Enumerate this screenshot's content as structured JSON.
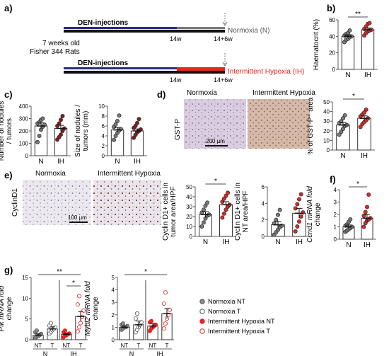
{
  "panels": {
    "a": {
      "label": "a)",
      "cohort": [
        "7 weeks old",
        "Fisher 344 Rats"
      ],
      "arm1": {
        "treatment": "DEN-injections",
        "t1": "14w",
        "t2": "14+6w",
        "condition": "Normoxia (N)"
      },
      "arm2": {
        "treatment": "DEN-injections",
        "t1": "14w",
        "t2": "14+6w",
        "condition": "Intermittent Hypoxia (IH)"
      },
      "colors": {
        "den": "#2c2c80",
        "normoxia": "#7a7a7a",
        "ih": "#e8251f",
        "black": "#111111"
      }
    },
    "b": {
      "label": "b)"
    },
    "c": {
      "label": "c)"
    },
    "d": {
      "label": "d)",
      "img_left": "Normoxia",
      "img_right": "Intermittent Hypoxia",
      "stain": "GST-P",
      "scalebar": "200 µm"
    },
    "e": {
      "label": "e)",
      "img_left": "Normoxia",
      "img_right": "Intermittent Hypoxia",
      "stain": "CyclinD1",
      "scalebar": "100 µm"
    },
    "f": {
      "label": "f)"
    },
    "g": {
      "label": "g)"
    }
  },
  "legend": {
    "items": [
      {
        "label": "Normoxia NT",
        "fill": "#8a8a8a",
        "stroke": "#555555"
      },
      {
        "label": "Normoxia T",
        "fill": "#ffffff",
        "stroke": "#555555"
      },
      {
        "label": "Intermittent Hypoxia NT",
        "fill": "#e8251f",
        "stroke": "#e8251f"
      },
      {
        "label": "Intermittent Hypoxia T",
        "fill": "#ffffff",
        "stroke": "#e8251f"
      }
    ]
  },
  "chart_data": [
    {
      "id": "b",
      "type": "bar",
      "categories": [
        "N",
        "IH"
      ],
      "values": [
        40,
        48
      ],
      "errors": [
        2,
        2
      ],
      "ylabel": "Haematocrit (%)",
      "yticks": [
        0,
        20,
        40,
        60
      ],
      "ylim": [
        0,
        60
      ],
      "significance": "**",
      "points": [
        [
          33,
          36,
          37,
          39,
          40,
          41,
          43,
          44,
          47
        ],
        [
          41,
          44,
          46,
          47,
          48,
          49,
          52,
          55,
          56
        ]
      ],
      "colors": [
        "#7a7a7a",
        "#e8251f"
      ]
    },
    {
      "id": "c1",
      "type": "bar",
      "categories": [
        "N",
        "IH"
      ],
      "values": [
        240,
        220
      ],
      "errors": [
        25,
        25
      ],
      "ylabel": "Number of nodules / tumors",
      "yticks": [
        0,
        100,
        200,
        300,
        400
      ],
      "ylim": [
        0,
        400
      ],
      "points": [
        [
          110,
          160,
          210,
          235,
          250,
          260,
          270,
          290,
          300
        ],
        [
          130,
          150,
          170,
          200,
          220,
          240,
          260,
          290,
          320
        ]
      ],
      "colors": [
        "#7a7a7a",
        "#8b1a1a"
      ]
    },
    {
      "id": "c2",
      "type": "bar",
      "categories": [
        "N",
        "IH"
      ],
      "values": [
        5.2,
        5.0
      ],
      "errors": [
        0.5,
        0.4
      ],
      "ylabel": "Size of nodules / tumors (mm)",
      "yticks": [
        0,
        2,
        4,
        6,
        8,
        10
      ],
      "ylim": [
        0,
        10
      ],
      "points": [
        [
          3.2,
          4.0,
          4.6,
          5.1,
          5.4,
          5.8,
          6.3,
          7.0,
          8.1
        ],
        [
          3.6,
          4.2,
          4.7,
          5.0,
          5.3,
          5.6,
          6.0,
          6.6,
          7.4
        ]
      ],
      "colors": [
        "#7a7a7a",
        "#8b1a1a"
      ]
    },
    {
      "id": "d",
      "type": "bar",
      "categories": [
        "N",
        "IH"
      ],
      "values": [
        26,
        33
      ],
      "errors": [
        2.5,
        2.5
      ],
      "ylabel": "% of GST-P⁺ area",
      "yticks": [
        0,
        10,
        20,
        30,
        40,
        50
      ],
      "ylim": [
        0,
        50
      ],
      "significance": "*",
      "points": [
        [
          16,
          19,
          22,
          25,
          26,
          28,
          30,
          33,
          36
        ],
        [
          24,
          27,
          29,
          31,
          33,
          35,
          37,
          39,
          42
        ]
      ],
      "colors": [
        "#7a7a7a",
        "#e8251f"
      ]
    },
    {
      "id": "e1",
      "type": "bar",
      "categories": [
        "N",
        "IH"
      ],
      "values": [
        22,
        32
      ],
      "errors": [
        3,
        3
      ],
      "ylabel": "Cyclin D1+ cells in tumor area/HPF",
      "yticks": [
        0,
        10,
        20,
        30,
        40,
        50
      ],
      "ylim": [
        0,
        50
      ],
      "significance": "*",
      "points": [
        [
          10,
          14,
          18,
          21,
          22,
          24,
          27,
          31,
          34
        ],
        [
          19,
          23,
          27,
          30,
          32,
          35,
          38,
          41,
          44
        ]
      ],
      "colors": [
        "#7a7a7a",
        "#e8251f"
      ]
    },
    {
      "id": "e2",
      "type": "bar",
      "categories": [
        "N",
        "IH"
      ],
      "values": [
        1.4,
        2.8
      ],
      "errors": [
        0.4,
        0.6
      ],
      "ylabel": "Cyclin D1+ cells in NT area/HPF",
      "yticks": [
        0,
        2,
        4,
        6
      ],
      "ylim": [
        0,
        6
      ],
      "points": [
        [
          0.2,
          0.5,
          0.8,
          1.1,
          1.3,
          1.6,
          2.0,
          2.6,
          3.2
        ],
        [
          0.6,
          1.2,
          1.8,
          2.4,
          2.9,
          3.4,
          3.9,
          4.5,
          5.1
        ]
      ],
      "colors": [
        "#7a7a7a",
        "#e8251f"
      ]
    },
    {
      "id": "f",
      "type": "bar",
      "categories": [
        "N",
        "IH"
      ],
      "values": [
        1.0,
        1.7
      ],
      "errors": [
        0.15,
        0.3
      ],
      "ylabel": "Ccnd1 mRNA fold change",
      "yticks": [
        0,
        1,
        2,
        3,
        4
      ],
      "ylim": [
        0,
        4
      ],
      "significance": "*",
      "points": [
        [
          0.6,
          0.7,
          0.8,
          0.9,
          1.0,
          1.1,
          1.2,
          1.4,
          1.6
        ],
        [
          1.0,
          1.3,
          1.5,
          1.6,
          1.7,
          1.9,
          2.2,
          2.6,
          3.6
        ]
      ],
      "colors": [
        "#7a7a7a",
        "#e8251f"
      ]
    },
    {
      "id": "g1",
      "type": "bar",
      "categories": [
        "NT",
        "T",
        "NT",
        "T"
      ],
      "groups": [
        "N",
        "IH"
      ],
      "values": [
        1.1,
        2.6,
        1.3,
        5.6
      ],
      "errors": [
        0.3,
        0.5,
        0.3,
        1.2
      ],
      "ylabel": "Plk mRNA fold change",
      "yticks": [
        0,
        5,
        10,
        15
      ],
      "ylim": [
        0,
        15
      ],
      "significance": [
        {
          "pair": [
            0,
            3
          ],
          "text": "**"
        },
        {
          "pair": [
            2,
            3
          ],
          "text": "*"
        }
      ],
      "points": [
        [
          0.4,
          0.7,
          0.9,
          1.1,
          1.4,
          1.8,
          2.2
        ],
        [
          1.5,
          1.9,
          2.3,
          2.6,
          3.0,
          3.4,
          4.0
        ],
        [
          0.6,
          0.9,
          1.1,
          1.3,
          1.5,
          1.8,
          2.2
        ],
        [
          2.0,
          3.0,
          4.0,
          5.5,
          7.0,
          8.5,
          10.5
        ]
      ],
      "colors": [
        "#8a8a8a",
        "#ffffff",
        "#e8251f",
        "#ffffff"
      ],
      "edges": [
        "#555555",
        "#555555",
        "#e8251f",
        "#e8251f"
      ]
    },
    {
      "id": "g2",
      "type": "bar",
      "categories": [
        "NT",
        "T",
        "NT",
        "T"
      ],
      "groups": [
        "N",
        "IH"
      ],
      "values": [
        1.0,
        1.2,
        1.1,
        2.1
      ],
      "errors": [
        0.1,
        0.3,
        0.2,
        0.4
      ],
      "ylabel": "Mybl2 mRNA fold change",
      "yticks": [
        0,
        1,
        2,
        3,
        4,
        5
      ],
      "ylim": [
        0,
        5
      ],
      "significance": [
        {
          "pair": [
            0,
            3
          ],
          "text": "*"
        }
      ],
      "points": [
        [
          0.8,
          0.9,
          1.0,
          1.0,
          1.1,
          1.2,
          1.3
        ],
        [
          0.6,
          0.8,
          1.0,
          1.2,
          1.4,
          1.7,
          2.1
        ],
        [
          0.7,
          0.9,
          1.0,
          1.1,
          1.2,
          1.4,
          1.5
        ],
        [
          0.9,
          1.3,
          1.7,
          2.0,
          2.4,
          2.9,
          3.8
        ]
      ],
      "colors": [
        "#8a8a8a",
        "#ffffff",
        "#e8251f",
        "#ffffff"
      ],
      "edges": [
        "#555555",
        "#555555",
        "#e8251f",
        "#e8251f"
      ]
    }
  ]
}
